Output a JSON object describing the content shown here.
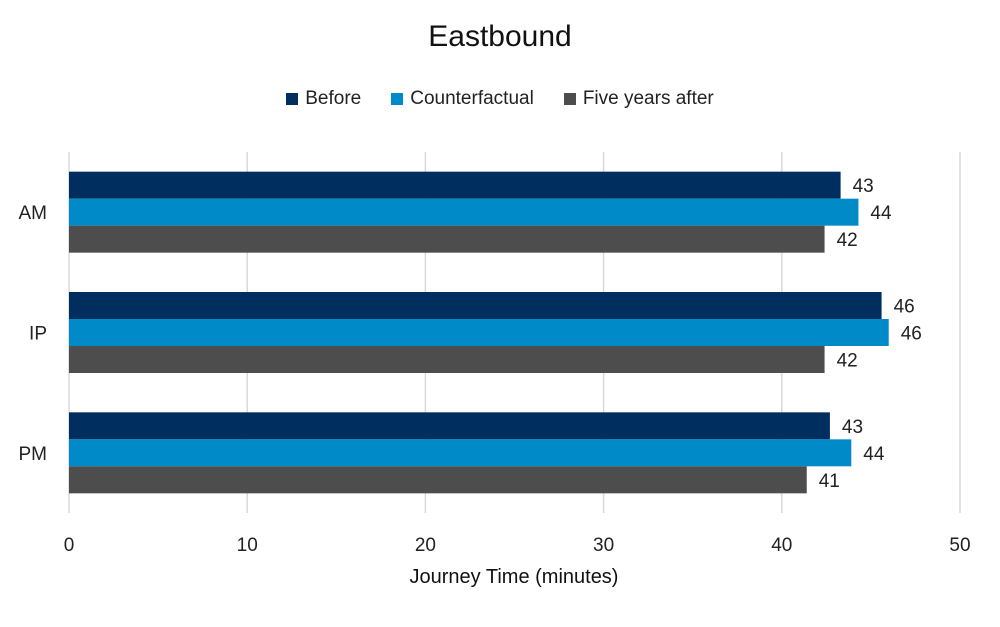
{
  "chart_data": {
    "type": "bar",
    "orientation": "horizontal",
    "title": "Eastbound",
    "xlabel": "Journey Time (minutes)",
    "ylabel": "",
    "categories": [
      "AM",
      "IP",
      "PM"
    ],
    "xlim": [
      0,
      50
    ],
    "x_ticks": [
      0,
      10,
      20,
      30,
      40,
      50
    ],
    "grid": "vertical",
    "legend_position": "top",
    "series": [
      {
        "name": "Before",
        "color": "#002F5F",
        "values": [
          43.3,
          45.6,
          42.7
        ],
        "labels": [
          "43",
          "46",
          "43"
        ]
      },
      {
        "name": "Counterfactual",
        "color": "#008AC8",
        "values": [
          44.3,
          46.0,
          43.9
        ],
        "labels": [
          "44",
          "46",
          "44"
        ]
      },
      {
        "name": "Five years after",
        "color": "#4D4D4D",
        "values": [
          42.4,
          42.4,
          41.4
        ],
        "labels": [
          "42",
          "42",
          "41"
        ]
      }
    ]
  }
}
